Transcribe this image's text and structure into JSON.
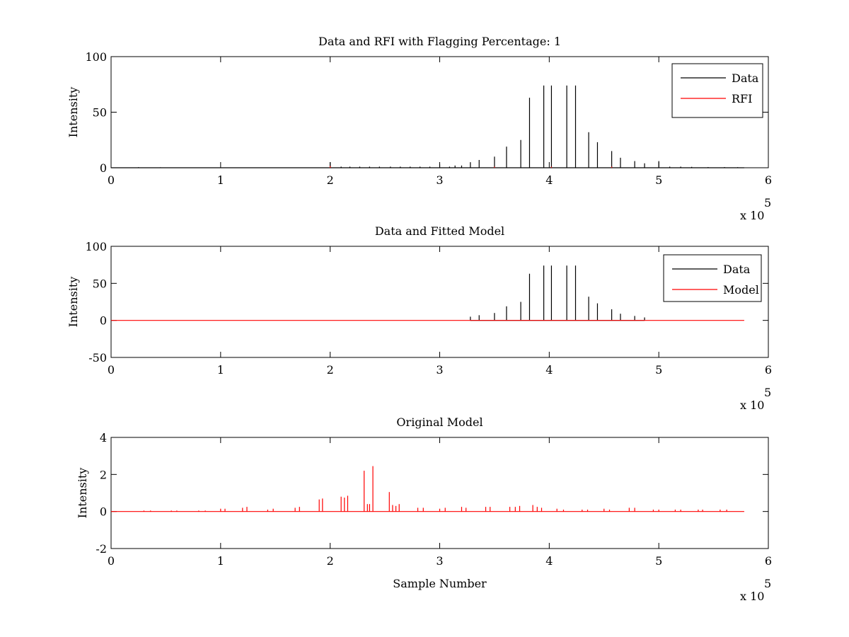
{
  "chart_data": [
    {
      "type": "line",
      "title": "Data and RFI with Flagging Percentage: 1",
      "xlabel": "",
      "ylabel": "Intensity",
      "xlim": [
        0,
        600000
      ],
      "ylim": [
        0,
        100
      ],
      "xticks": [
        "0",
        "1",
        "2",
        "3",
        "4",
        "5",
        "6"
      ],
      "yticks": [
        "0",
        "50",
        "100"
      ],
      "x_exponent_label": "x 10",
      "x_exponent_power": "5",
      "legend": {
        "position": "top-right",
        "entries": [
          {
            "label": "Data",
            "color": "#000000"
          },
          {
            "label": "RFI",
            "color": "#ff0000"
          }
        ]
      },
      "series": [
        {
          "name": "Data",
          "color": "#000000",
          "spikes": [
            {
              "x": 25000,
              "y": 0.5
            },
            {
              "x": 45000,
              "y": 0.4
            },
            {
              "x": 200000,
              "y": 5
            },
            {
              "x": 210000,
              "y": 1
            },
            {
              "x": 218000,
              "y": 1
            },
            {
              "x": 227000,
              "y": 1
            },
            {
              "x": 236000,
              "y": 1
            },
            {
              "x": 245000,
              "y": 1
            },
            {
              "x": 255000,
              "y": 1
            },
            {
              "x": 264000,
              "y": 1
            },
            {
              "x": 273000,
              "y": 1
            },
            {
              "x": 282000,
              "y": 1
            },
            {
              "x": 291000,
              "y": 1
            },
            {
              "x": 300000,
              "y": 3
            },
            {
              "x": 309000,
              "y": 1
            },
            {
              "x": 314000,
              "y": 2
            },
            {
              "x": 320000,
              "y": 2
            },
            {
              "x": 328000,
              "y": 5
            },
            {
              "x": 336000,
              "y": 7
            },
            {
              "x": 350000,
              "y": 10
            },
            {
              "x": 361000,
              "y": 19
            },
            {
              "x": 374000,
              "y": 25
            },
            {
              "x": 382000,
              "y": 63
            },
            {
              "x": 395000,
              "y": 74
            },
            {
              "x": 402000,
              "y": 74
            },
            {
              "x": 416000,
              "y": 74
            },
            {
              "x": 424000,
              "y": 74
            },
            {
              "x": 436000,
              "y": 32
            },
            {
              "x": 444000,
              "y": 23
            },
            {
              "x": 457000,
              "y": 15
            },
            {
              "x": 465000,
              "y": 9
            },
            {
              "x": 478000,
              "y": 6
            },
            {
              "x": 487000,
              "y": 4
            },
            {
              "x": 500000,
              "y": 6
            },
            {
              "x": 510000,
              "y": 1
            },
            {
              "x": 520000,
              "y": 1
            },
            {
              "x": 530000,
              "y": 0.8
            },
            {
              "x": 545000,
              "y": 0.6
            },
            {
              "x": 560000,
              "y": 0.6
            },
            {
              "x": 572000,
              "y": 0.5
            }
          ]
        },
        {
          "name": "RFI",
          "color": "#ff0000",
          "spikes": [
            {
              "x": 200000,
              "y": 1.5
            },
            {
              "x": 350000,
              "y": 1
            },
            {
              "x": 402000,
              "y": 1
            },
            {
              "x": 457000,
              "y": 1
            }
          ]
        }
      ]
    },
    {
      "type": "line",
      "title": "Data and Fitted Model",
      "xlabel": "",
      "ylabel": "Intensity",
      "xlim": [
        0,
        600000
      ],
      "ylim": [
        -50,
        100
      ],
      "xticks": [
        "0",
        "1",
        "2",
        "3",
        "4",
        "5",
        "6"
      ],
      "yticks": [
        "-50",
        "0",
        "50",
        "100"
      ],
      "x_exponent_label": "x 10",
      "x_exponent_power": "5",
      "legend": {
        "position": "top-right",
        "entries": [
          {
            "label": "Data",
            "color": "#000000"
          },
          {
            "label": "Model",
            "color": "#ff0000"
          }
        ]
      },
      "series": [
        {
          "name": "Data",
          "color": "#000000",
          "spikes": [
            {
              "x": 328000,
              "y": 5
            },
            {
              "x": 336000,
              "y": 7
            },
            {
              "x": 350000,
              "y": 10
            },
            {
              "x": 361000,
              "y": 19
            },
            {
              "x": 374000,
              "y": 25
            },
            {
              "x": 382000,
              "y": 63
            },
            {
              "x": 395000,
              "y": 74
            },
            {
              "x": 402000,
              "y": 74
            },
            {
              "x": 416000,
              "y": 74
            },
            {
              "x": 424000,
              "y": 74
            },
            {
              "x": 436000,
              "y": 32
            },
            {
              "x": 444000,
              "y": 23
            },
            {
              "x": 457000,
              "y": 15
            },
            {
              "x": 465000,
              "y": 9
            },
            {
              "x": 478000,
              "y": 6
            },
            {
              "x": 487000,
              "y": 4
            }
          ]
        },
        {
          "name": "Model",
          "color": "#ff0000",
          "x": [
            0,
            578000
          ],
          "values": [
            0,
            0
          ]
        }
      ]
    },
    {
      "type": "line",
      "title": "Original Model",
      "xlabel": "Sample Number",
      "ylabel": "Intensity",
      "xlim": [
        0,
        600000
      ],
      "ylim": [
        -2,
        4
      ],
      "xticks": [
        "0",
        "1",
        "2",
        "3",
        "4",
        "5",
        "6"
      ],
      "yticks": [
        "-2",
        "0",
        "2",
        "4"
      ],
      "x_exponent_label": "x 10",
      "x_exponent_power": "5",
      "series": [
        {
          "color": "#ff0000",
          "spikes": [
            {
              "x": 30000,
              "y": 0.05
            },
            {
              "x": 36000,
              "y": 0.05
            },
            {
              "x": 55000,
              "y": 0.05
            },
            {
              "x": 60000,
              "y": 0.05
            },
            {
              "x": 80000,
              "y": 0.05
            },
            {
              "x": 86000,
              "y": 0.05
            },
            {
              "x": 100000,
              "y": 0.15
            },
            {
              "x": 104000,
              "y": 0.15
            },
            {
              "x": 120000,
              "y": 0.2
            },
            {
              "x": 124000,
              "y": 0.25
            },
            {
              "x": 143000,
              "y": 0.1
            },
            {
              "x": 148000,
              "y": 0.15
            },
            {
              "x": 168000,
              "y": 0.2
            },
            {
              "x": 172000,
              "y": 0.25
            },
            {
              "x": 190000,
              "y": 0.65
            },
            {
              "x": 193000,
              "y": 0.7
            },
            {
              "x": 210000,
              "y": 0.8
            },
            {
              "x": 213000,
              "y": 0.75
            },
            {
              "x": 216000,
              "y": 0.85
            },
            {
              "x": 231000,
              "y": 2.2
            },
            {
              "x": 234000,
              "y": 0.4
            },
            {
              "x": 236000,
              "y": 0.4
            },
            {
              "x": 239000,
              "y": 2.45
            },
            {
              "x": 254000,
              "y": 1.05
            },
            {
              "x": 257000,
              "y": 0.35
            },
            {
              "x": 260000,
              "y": 0.3
            },
            {
              "x": 263000,
              "y": 0.4
            },
            {
              "x": 280000,
              "y": 0.2
            },
            {
              "x": 285000,
              "y": 0.2
            },
            {
              "x": 300000,
              "y": 0.15
            },
            {
              "x": 305000,
              "y": 0.2
            },
            {
              "x": 320000,
              "y": 0.25
            },
            {
              "x": 324000,
              "y": 0.2
            },
            {
              "x": 342000,
              "y": 0.25
            },
            {
              "x": 346000,
              "y": 0.25
            },
            {
              "x": 364000,
              "y": 0.25
            },
            {
              "x": 369000,
              "y": 0.25
            },
            {
              "x": 373000,
              "y": 0.3
            },
            {
              "x": 385000,
              "y": 0.35
            },
            {
              "x": 389000,
              "y": 0.25
            },
            {
              "x": 393000,
              "y": 0.2
            },
            {
              "x": 407000,
              "y": 0.15
            },
            {
              "x": 413000,
              "y": 0.1
            },
            {
              "x": 430000,
              "y": 0.1
            },
            {
              "x": 435000,
              "y": 0.1
            },
            {
              "x": 450000,
              "y": 0.15
            },
            {
              "x": 455000,
              "y": 0.1
            },
            {
              "x": 473000,
              "y": 0.2
            },
            {
              "x": 478000,
              "y": 0.2
            },
            {
              "x": 495000,
              "y": 0.1
            },
            {
              "x": 500000,
              "y": 0.1
            },
            {
              "x": 515000,
              "y": 0.1
            },
            {
              "x": 520000,
              "y": 0.1
            },
            {
              "x": 536000,
              "y": 0.1
            },
            {
              "x": 540000,
              "y": 0.1
            },
            {
              "x": 556000,
              "y": 0.1
            },
            {
              "x": 562000,
              "y": 0.1
            }
          ]
        }
      ]
    }
  ]
}
